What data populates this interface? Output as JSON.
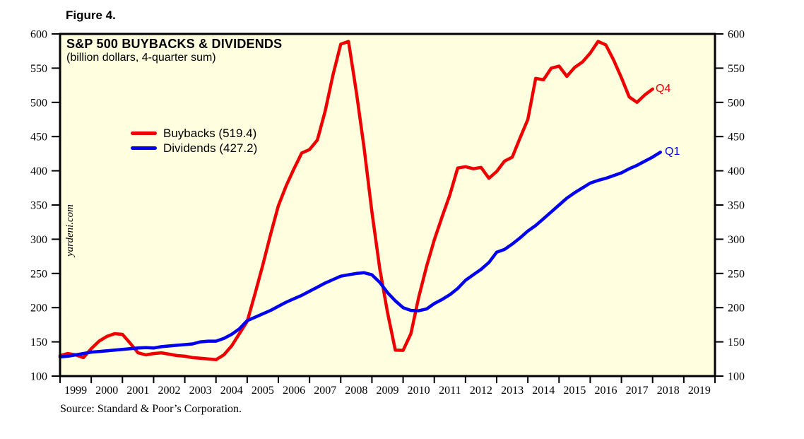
{
  "figure_label": "Figure 4.",
  "watermark": "yardeni.com",
  "source": "Source: Standard & Poor’s Corporation.",
  "chart_data": {
    "type": "line",
    "title": "S&P 500 BUYBACKS & DIVIDENDS",
    "subtitle": "(billion dollars, 4-quarter sum)",
    "background_color": "#FFFFE0",
    "frame_color": "#000000",
    "grid": false,
    "legend_position": "upper-left-inside",
    "ylim": [
      100,
      600
    ],
    "ytick_interval": 50,
    "xlim": [
      1999,
      2020
    ],
    "year_labels": [
      "1999",
      "2000",
      "2001",
      "2002",
      "2003",
      "2004",
      "2005",
      "2006",
      "2007",
      "2008",
      "2009",
      "2010",
      "2011",
      "2012",
      "2013",
      "2014",
      "2015",
      "2016",
      "2017",
      "2018",
      "2019"
    ],
    "series": [
      {
        "name": "Buybacks (519.4)",
        "color": "#EE0000",
        "end_label": "Q4",
        "latest_value": 519.4,
        "points": [
          [
            1999.0,
            130
          ],
          [
            1999.25,
            133
          ],
          [
            1999.5,
            131
          ],
          [
            1999.75,
            127
          ],
          [
            2000.0,
            140
          ],
          [
            2000.25,
            151
          ],
          [
            2000.5,
            158
          ],
          [
            2000.75,
            162
          ],
          [
            2001.0,
            161
          ],
          [
            2001.25,
            148
          ],
          [
            2001.5,
            134
          ],
          [
            2001.75,
            131
          ],
          [
            2002.0,
            133
          ],
          [
            2002.25,
            134
          ],
          [
            2002.5,
            132
          ],
          [
            2002.75,
            130
          ],
          [
            2003.0,
            129
          ],
          [
            2003.25,
            127
          ],
          [
            2003.5,
            126
          ],
          [
            2003.75,
            125
          ],
          [
            2004.0,
            124
          ],
          [
            2004.25,
            131
          ],
          [
            2004.5,
            144
          ],
          [
            2004.75,
            162
          ],
          [
            2005.0,
            180
          ],
          [
            2005.25,
            220
          ],
          [
            2005.5,
            262
          ],
          [
            2005.75,
            307
          ],
          [
            2006.0,
            349
          ],
          [
            2006.25,
            378
          ],
          [
            2006.5,
            403
          ],
          [
            2006.75,
            426
          ],
          [
            2007.0,
            431
          ],
          [
            2007.25,
            445
          ],
          [
            2007.5,
            487
          ],
          [
            2007.75,
            540
          ],
          [
            2008.0,
            585
          ],
          [
            2008.25,
            589
          ],
          [
            2008.5,
            515
          ],
          [
            2008.75,
            433
          ],
          [
            2009.0,
            340
          ],
          [
            2009.25,
            257
          ],
          [
            2009.5,
            193
          ],
          [
            2009.75,
            138
          ],
          [
            2010.0,
            137.6
          ],
          [
            2010.25,
            162
          ],
          [
            2010.5,
            215
          ],
          [
            2010.75,
            260
          ],
          [
            2011.0,
            299
          ],
          [
            2011.25,
            333
          ],
          [
            2011.5,
            365
          ],
          [
            2011.75,
            404
          ],
          [
            2012.0,
            406
          ],
          [
            2012.25,
            403
          ],
          [
            2012.5,
            405
          ],
          [
            2012.75,
            389
          ],
          [
            2013.0,
            399
          ],
          [
            2013.25,
            414
          ],
          [
            2013.5,
            420
          ],
          [
            2013.75,
            448
          ],
          [
            2014.0,
            475
          ],
          [
            2014.25,
            535
          ],
          [
            2014.5,
            533
          ],
          [
            2014.75,
            550
          ],
          [
            2015.0,
            553
          ],
          [
            2015.25,
            538
          ],
          [
            2015.5,
            551
          ],
          [
            2015.75,
            559
          ],
          [
            2016.0,
            572
          ],
          [
            2016.25,
            589
          ],
          [
            2016.5,
            584
          ],
          [
            2016.75,
            562
          ],
          [
            2017.0,
            536
          ],
          [
            2017.25,
            508
          ],
          [
            2017.5,
            500
          ],
          [
            2017.75,
            511
          ],
          [
            2018.0,
            519.4
          ]
        ]
      },
      {
        "name": "Dividends (427.2)",
        "color": "#0000EE",
        "end_label": "Q1",
        "latest_value": 427.2,
        "points": [
          [
            1999.0,
            128
          ],
          [
            1999.25,
            129
          ],
          [
            1999.5,
            131
          ],
          [
            1999.75,
            133
          ],
          [
            2000.0,
            135
          ],
          [
            2000.25,
            136
          ],
          [
            2000.5,
            137
          ],
          [
            2000.75,
            138
          ],
          [
            2001.0,
            139
          ],
          [
            2001.25,
            140
          ],
          [
            2001.5,
            141
          ],
          [
            2001.75,
            141.5
          ],
          [
            2002.0,
            141
          ],
          [
            2002.25,
            143
          ],
          [
            2002.5,
            144
          ],
          [
            2002.75,
            145
          ],
          [
            2003.0,
            146
          ],
          [
            2003.25,
            147
          ],
          [
            2003.5,
            150
          ],
          [
            2003.75,
            151
          ],
          [
            2004.0,
            151
          ],
          [
            2004.25,
            155
          ],
          [
            2004.5,
            161
          ],
          [
            2004.75,
            169
          ],
          [
            2005.0,
            181
          ],
          [
            2005.25,
            186
          ],
          [
            2005.5,
            191
          ],
          [
            2005.75,
            196
          ],
          [
            2006.0,
            202
          ],
          [
            2006.25,
            208
          ],
          [
            2006.5,
            213
          ],
          [
            2006.75,
            218
          ],
          [
            2007.0,
            224
          ],
          [
            2007.25,
            230
          ],
          [
            2007.5,
            236
          ],
          [
            2007.75,
            241
          ],
          [
            2008.0,
            246
          ],
          [
            2008.25,
            248
          ],
          [
            2008.5,
            250
          ],
          [
            2008.75,
            251
          ],
          [
            2009.0,
            248
          ],
          [
            2009.25,
            237
          ],
          [
            2009.5,
            222
          ],
          [
            2009.75,
            210
          ],
          [
            2010.0,
            200
          ],
          [
            2010.25,
            196
          ],
          [
            2010.5,
            195.5
          ],
          [
            2010.75,
            198
          ],
          [
            2011.0,
            206
          ],
          [
            2011.25,
            212
          ],
          [
            2011.5,
            219
          ],
          [
            2011.75,
            228
          ],
          [
            2012.0,
            240
          ],
          [
            2012.25,
            248
          ],
          [
            2012.5,
            256
          ],
          [
            2012.75,
            266
          ],
          [
            2013.0,
            281
          ],
          [
            2013.25,
            285
          ],
          [
            2013.5,
            293
          ],
          [
            2013.75,
            302
          ],
          [
            2014.0,
            312
          ],
          [
            2014.25,
            320
          ],
          [
            2014.5,
            330
          ],
          [
            2014.75,
            340
          ],
          [
            2015.0,
            350
          ],
          [
            2015.25,
            360
          ],
          [
            2015.5,
            368
          ],
          [
            2015.75,
            375
          ],
          [
            2016.0,
            382
          ],
          [
            2016.25,
            386
          ],
          [
            2016.5,
            389
          ],
          [
            2016.75,
            393
          ],
          [
            2017.0,
            397
          ],
          [
            2017.25,
            403
          ],
          [
            2017.5,
            408
          ],
          [
            2017.75,
            414
          ],
          [
            2018.0,
            420
          ],
          [
            2018.25,
            427.2
          ]
        ]
      }
    ]
  }
}
